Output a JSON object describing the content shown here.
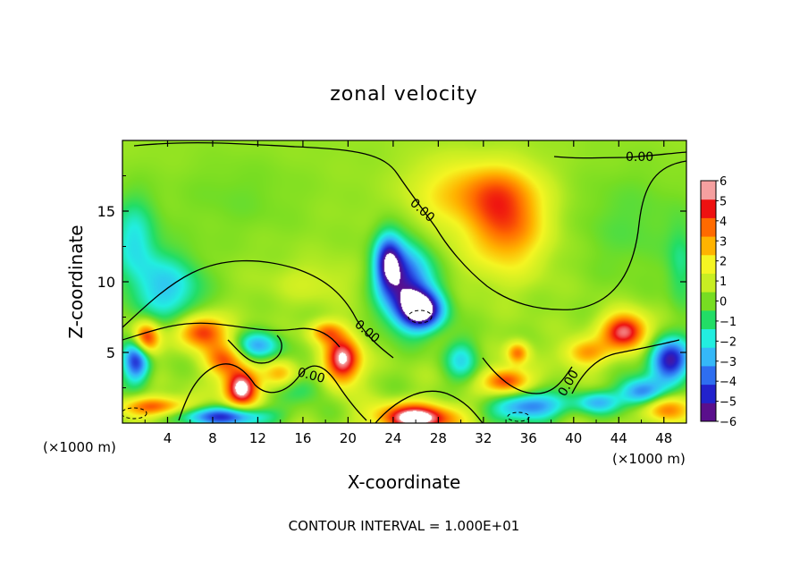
{
  "chart_data": {
    "type": "heatmap",
    "title": "zonal velocity",
    "xlabel": "X-coordinate",
    "ylabel": "Z-coordinate",
    "x_unit_left": "(×1000 m)",
    "x_unit_right": "(×1000 m)",
    "xlim": [
      0,
      50
    ],
    "ylim": [
      0,
      20
    ],
    "x_ticks": [
      4,
      8,
      12,
      16,
      20,
      24,
      28,
      32,
      36,
      40,
      44,
      48
    ],
    "x_tick_labels": [
      "4",
      "8",
      "12",
      "16",
      "20",
      "24",
      "28",
      "32",
      "36",
      "40",
      "44",
      "48"
    ],
    "y_ticks": [
      5,
      10,
      15
    ],
    "y_tick_labels": [
      "5",
      "10",
      "15"
    ],
    "contour_labels": [
      "0.00",
      "0.00",
      "0.00",
      "0.00",
      "0.00"
    ],
    "footer": "CONTOUR INTERVAL = 1.000E+01",
    "colorbar": {
      "min": -6,
      "max": 6,
      "labels": [
        "6",
        "5",
        "4",
        "3",
        "2",
        "1",
        "0",
        "−1",
        "−2",
        "−3",
        "−4",
        "−5",
        "−6"
      ],
      "colors": [
        "#5a0f8c",
        "#2222cc",
        "#2e6ef0",
        "#35b8f8",
        "#22eee0",
        "#22dd66",
        "#77dd22",
        "#c8ee22",
        "#f5f522",
        "#ffb300",
        "#ff6a00",
        "#ee1111",
        "#f5a0a0"
      ]
    },
    "blobs": [
      {
        "x": 25,
        "y": 10,
        "sx": 2.4,
        "sy": 2.8,
        "v": -5.2
      },
      {
        "x": 26.5,
        "y": 8,
        "sx": 2.0,
        "sy": 1.4,
        "v": -6.5
      },
      {
        "x": 23.5,
        "y": 11.5,
        "sx": 1.2,
        "sy": 2.0,
        "v": -4.5
      },
      {
        "x": 34,
        "y": 14,
        "sx": 3.5,
        "sy": 3.2,
        "v": 3.6
      },
      {
        "x": 32.5,
        "y": 16.5,
        "sx": 4.0,
        "sy": 2.0,
        "v": 2.2
      },
      {
        "x": 28,
        "y": 16,
        "sx": 3.5,
        "sy": 3.0,
        "v": 1.2
      },
      {
        "x": 4,
        "y": 9.5,
        "sx": 3.0,
        "sy": 2.5,
        "v": -3.0
      },
      {
        "x": 1,
        "y": 13,
        "sx": 2.0,
        "sy": 3.0,
        "v": -2.5
      },
      {
        "x": 7,
        "y": 6.5,
        "sx": 2.2,
        "sy": 1.2,
        "v": 4.5
      },
      {
        "x": 2,
        "y": 6,
        "sx": 1.2,
        "sy": 1.2,
        "v": 5.5
      },
      {
        "x": 10.5,
        "y": 2.5,
        "sx": 1.5,
        "sy": 1.3,
        "v": 6.5
      },
      {
        "x": 9,
        "y": 4.5,
        "sx": 1.8,
        "sy": 1.2,
        "v": 3.5
      },
      {
        "x": 12,
        "y": 5.5,
        "sx": 2.0,
        "sy": 1.0,
        "v": -3.5
      },
      {
        "x": 19.5,
        "y": 4.5,
        "sx": 1.6,
        "sy": 1.7,
        "v": 6.0
      },
      {
        "x": 18,
        "y": 6.5,
        "sx": 1.5,
        "sy": 0.8,
        "v": 3.0
      },
      {
        "x": 1.2,
        "y": 4.5,
        "sx": 1.2,
        "sy": 1.6,
        "v": -5.5
      },
      {
        "x": 16,
        "y": 2.5,
        "sx": 2.0,
        "sy": 1.0,
        "v": -1.5
      },
      {
        "x": 26,
        "y": 0.4,
        "sx": 3.5,
        "sy": 1.0,
        "v": 6.5
      },
      {
        "x": 9,
        "y": 0.5,
        "sx": 4.0,
        "sy": 0.7,
        "v": -5.0
      },
      {
        "x": 3,
        "y": 1.2,
        "sx": 3.0,
        "sy": 0.7,
        "v": 4.0
      },
      {
        "x": 36,
        "y": 1.2,
        "sx": 3.0,
        "sy": 1.0,
        "v": -4.5
      },
      {
        "x": 34,
        "y": 3.0,
        "sx": 2.0,
        "sy": 0.9,
        "v": 4.5
      },
      {
        "x": 35,
        "y": 5.0,
        "sx": 1.0,
        "sy": 0.8,
        "v": 3.5
      },
      {
        "x": 44.5,
        "y": 6.5,
        "sx": 2.0,
        "sy": 1.3,
        "v": 5.5
      },
      {
        "x": 41,
        "y": 5.0,
        "sx": 2.0,
        "sy": 1.0,
        "v": 3.0
      },
      {
        "x": 48.5,
        "y": 4.5,
        "sx": 1.8,
        "sy": 1.5,
        "v": -6.0
      },
      {
        "x": 46,
        "y": 2.2,
        "sx": 2.0,
        "sy": 1.0,
        "v": -4.5
      },
      {
        "x": 48,
        "y": 1.0,
        "sx": 2.0,
        "sy": 1.0,
        "v": 3.5
      },
      {
        "x": 42,
        "y": 1.5,
        "sx": 2.0,
        "sy": 0.8,
        "v": -3.0
      },
      {
        "x": 30,
        "y": 4.5,
        "sx": 1.5,
        "sy": 1.5,
        "v": -2.5
      },
      {
        "x": 45,
        "y": 14,
        "sx": 5.0,
        "sy": 4.0,
        "v": -0.8
      },
      {
        "x": 10,
        "y": 16,
        "sx": 6.0,
        "sy": 3.0,
        "v": -0.5
      },
      {
        "x": 49.5,
        "y": 11,
        "sx": 1.2,
        "sy": 3.0,
        "v": -1.5
      },
      {
        "x": 17,
        "y": 10,
        "sx": 4.0,
        "sy": 1.5,
        "v": 0.8
      },
      {
        "x": 14,
        "y": 3.5,
        "sx": 1.5,
        "sy": 1.0,
        "v": 2.5
      }
    ]
  }
}
